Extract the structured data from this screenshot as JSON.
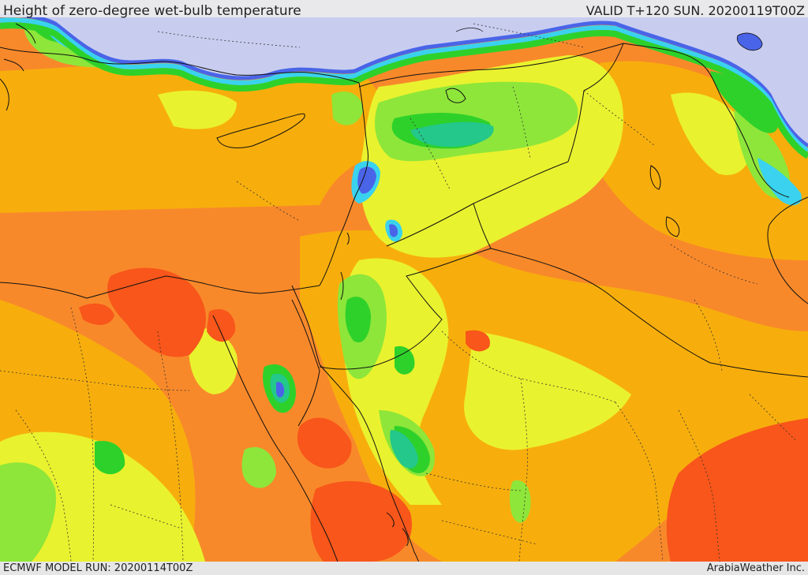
{
  "header": {
    "title": "Height of zero-degree wet-bulb temperature",
    "valid_time": "VALID T+120 SUN. 20200119T00Z"
  },
  "footer": {
    "model_run": "ECMWF MODEL RUN: 20200114T00Z",
    "credit": "ArabiaWeather Inc."
  },
  "palette": {
    "cold_lavender": "#c8cdf0",
    "blue": "#4a64e8",
    "cyan": "#3ad2ee",
    "teal": "#23c88a",
    "green": "#2ed12a",
    "light_green": "#8ee63a",
    "yellow_green": "#e9f22e",
    "amber": "#f7ae0c",
    "orange": "#f8892a",
    "red_orange": "#f8561a",
    "border_line": "#111111",
    "internal_border": "#333333"
  }
}
